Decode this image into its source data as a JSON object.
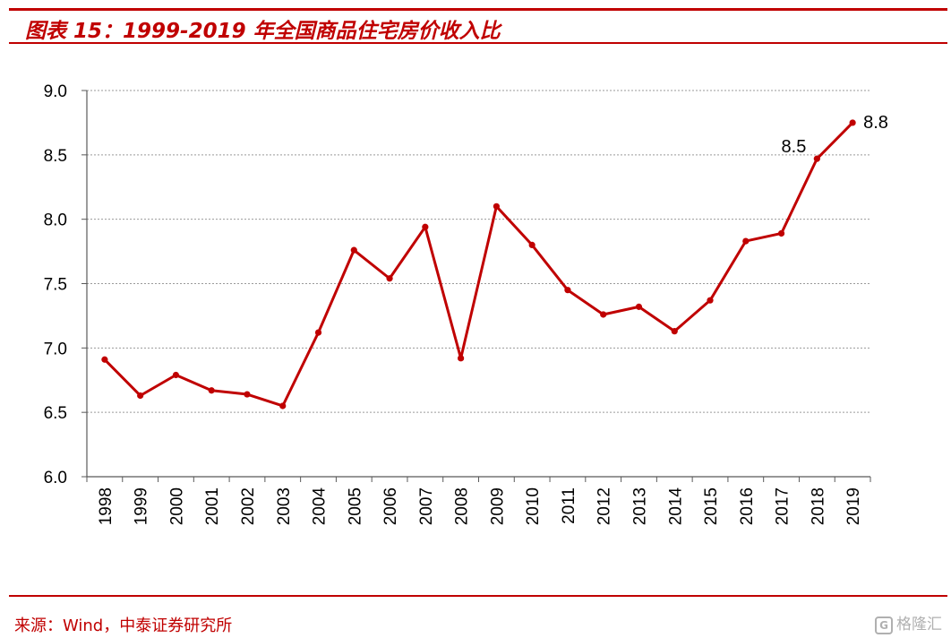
{
  "header": {
    "title": "图表 15：1999-2019 年全国商品住宅房价收入比",
    "accent_color": "#c00000"
  },
  "footer": {
    "source": "来源：Wind，中泰证券研究所",
    "watermark": "格隆汇",
    "watermark_icon": "G"
  },
  "chart_data": {
    "type": "line",
    "title": "",
    "xlabel": "",
    "ylabel": "",
    "categories": [
      "1998",
      "1999",
      "2000",
      "2001",
      "2002",
      "2003",
      "2004",
      "2005",
      "2006",
      "2007",
      "2008",
      "2009",
      "2010",
      "2011",
      "2012",
      "2013",
      "2014",
      "2015",
      "2016",
      "2017",
      "2018",
      "2019"
    ],
    "series": [
      {
        "values": [
          6.91,
          6.63,
          6.79,
          6.67,
          6.64,
          6.55,
          7.12,
          7.76,
          7.54,
          7.94,
          6.92,
          8.1,
          7.8,
          7.45,
          7.26,
          7.32,
          7.13,
          7.37,
          7.83,
          7.89,
          8.47,
          8.75
        ],
        "color": "#c00000"
      }
    ],
    "ylim": [
      6.0,
      9.0
    ],
    "yticks": [
      "6.0",
      "6.5",
      "7.0",
      "7.5",
      "8.0",
      "8.5",
      "9.0"
    ],
    "grid": true,
    "gridstyle": "dotted",
    "annotations": [
      {
        "category": "2018",
        "text": "8.5"
      },
      {
        "category": "2019",
        "text": "8.8"
      }
    ]
  }
}
